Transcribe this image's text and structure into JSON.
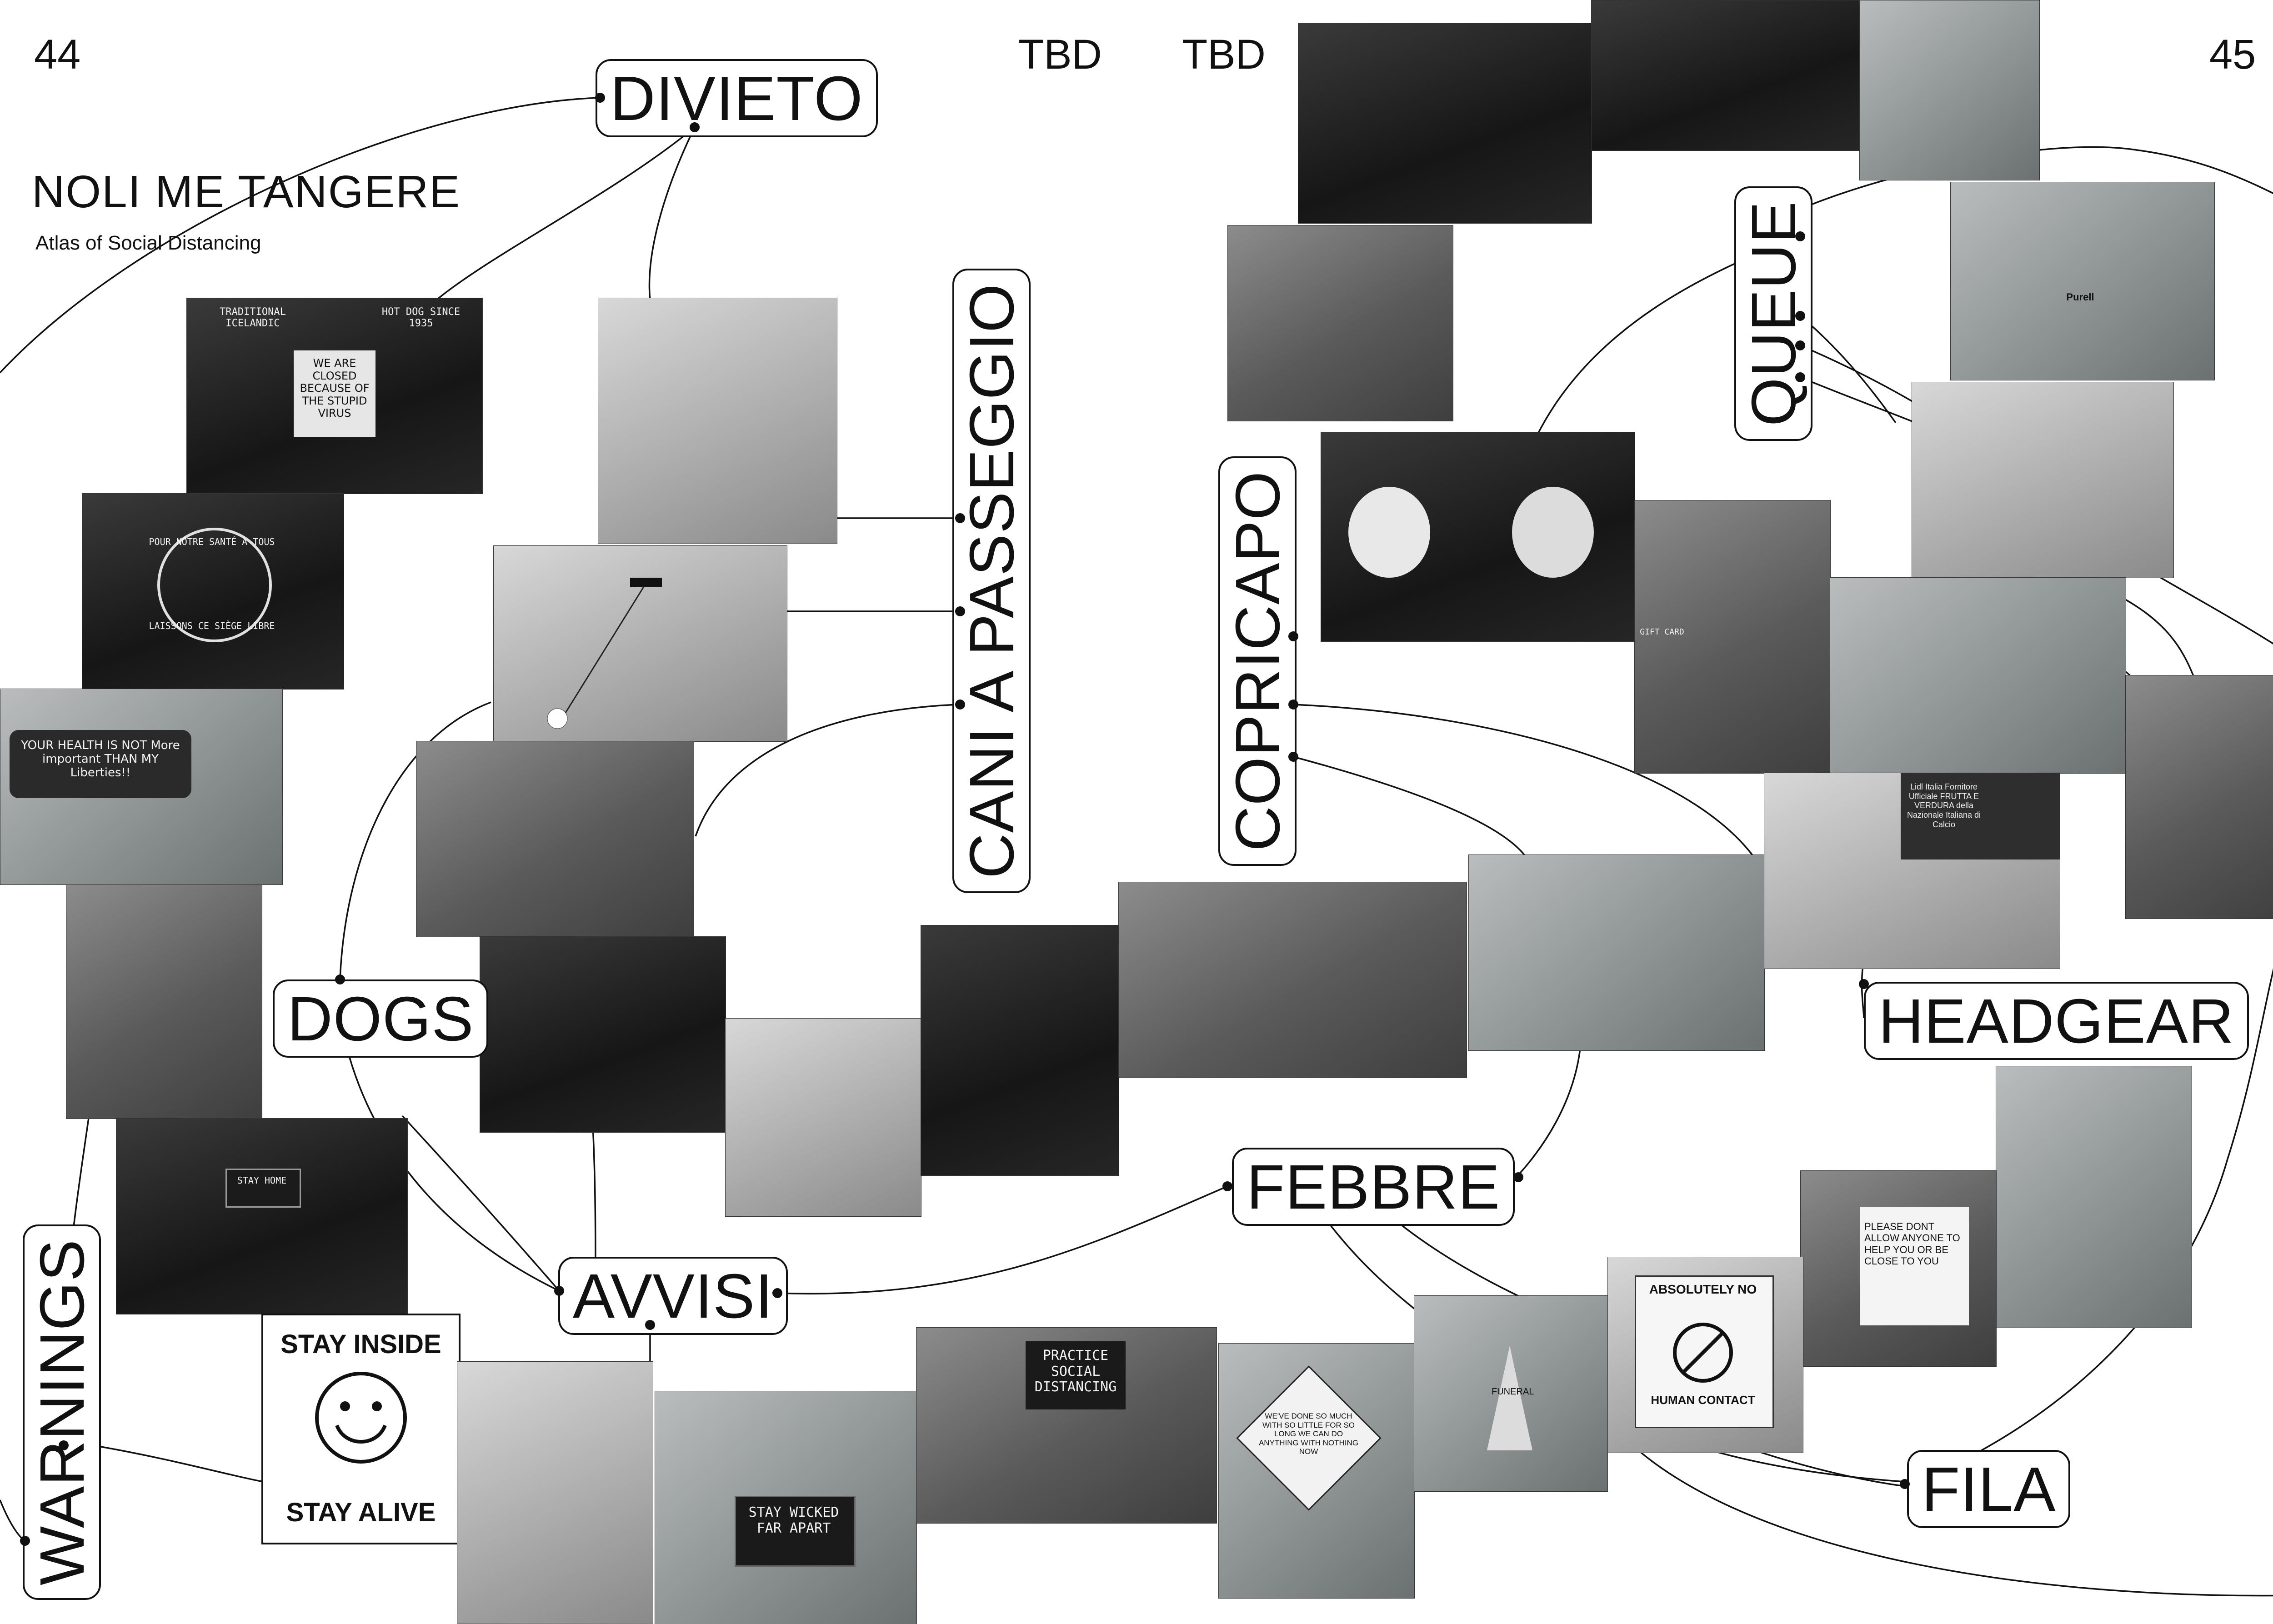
{
  "page": {
    "left_number": "44",
    "right_number": "45",
    "running_left": "TBD",
    "running_right": "TBD",
    "title": "NOLI ME TANGERE",
    "subtitle": "Atlas of Social Distancing"
  },
  "labels": {
    "divieto": "DIVIETO",
    "cani": "CANI A PASSEGGIO",
    "dogs": "DOGS",
    "avvisi": "AVVISI",
    "warnings": "WARNINGS",
    "febbre": "FEBBRE",
    "copricapo": "COPRICAPO",
    "queue": "QUEUE",
    "headgear": "HEADGEAR",
    "fila": "FILA"
  },
  "photo_text": {
    "hotdog_banner_left": "TRADITIONAL ICELANDIC",
    "hotdog_banner_right": "HOT DOG SINCE 1935",
    "closed_sign": "WE ARE CLOSED BECAUSE OF THE STUPID VIRUS",
    "pour_notre": "POUR NOTRE SANTÉ À TOUS",
    "laissons": "LAISSONS CE SIÈGE LIBRE",
    "car_window": "YOUR HEALTH IS NOT More important THAN MY Liberties!!",
    "stay_home": "STAY HOME",
    "stay_inside": "STAY INSIDE",
    "stay_alive": "STAY ALIVE",
    "stay_wicked": "STAY WICKED FAR APART",
    "practice": "PRACTICE SOCIAL DISTANCING",
    "diamond": "WE'VE DONE SO MUCH WITH SO LITTLE FOR SO LONG WE CAN DO ANYTHING WITH NOTHING NOW",
    "funeral": "FUNERAL",
    "absolutely_no": "ABSOLUTELY NO",
    "human_contact": "HUMAN CONTACT",
    "please_dont": "PLEASE DONT ALLOW ANYONE TO HELP YOU OR BE CLOSE TO YOU",
    "lidl": "Lidl Italia Fornitore Ufficiale FRUTTA E VERDURA della Nazionale Italiana di Calcio",
    "purell": "Purell",
    "gift_card": "GIFT CARD"
  },
  "colors": {
    "ink": "#111111",
    "paper": "#ffffff"
  }
}
